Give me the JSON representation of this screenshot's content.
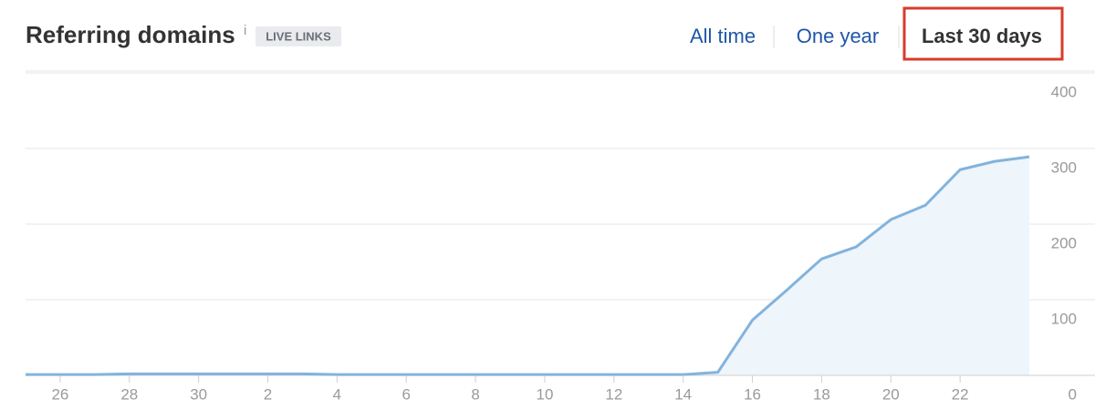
{
  "header": {
    "title": "Referring domains",
    "info": "i",
    "badge": "LIVE LINKS",
    "ranges": [
      "All time",
      "One year",
      "Last 30 days"
    ],
    "active_range": 2
  },
  "chart_data": {
    "type": "area",
    "categories": [
      null,
      "26",
      null,
      "28",
      null,
      "30",
      null,
      "2",
      null,
      "4",
      null,
      "6",
      null,
      "8",
      null,
      "10",
      null,
      "12",
      null,
      "14",
      null,
      "16",
      null,
      "18",
      null,
      "20",
      null,
      "22",
      null,
      null
    ],
    "values": [
      1,
      1,
      1,
      2,
      2,
      2,
      2,
      2,
      2,
      1,
      1,
      1,
      1,
      1,
      1,
      1,
      1,
      1,
      1,
      1,
      4,
      73,
      113,
      154,
      170,
      206,
      225,
      272,
      283,
      289
    ],
    "color": "#82b3dd",
    "fill": "#eef5fb",
    "ylim": [
      0,
      400
    ],
    "yticks": [
      0,
      100,
      200,
      300,
      400
    ],
    "grid": true
  }
}
